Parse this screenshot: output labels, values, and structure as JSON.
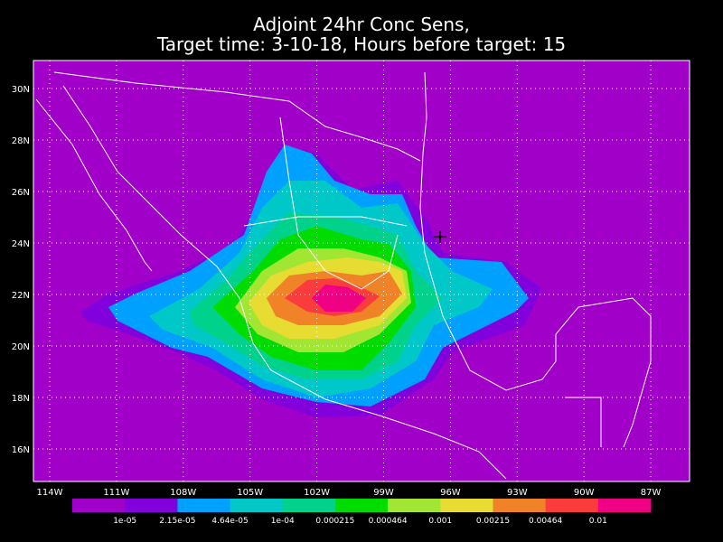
{
  "title": {
    "line1": "Adjoint 24hr Conc Sens,",
    "line2": "Target time: 3-10-18, Hours before target: 15"
  },
  "map": {
    "lat_labels": [
      "30N",
      "28N",
      "26N",
      "24N",
      "22N",
      "20N",
      "18N",
      "16N"
    ],
    "lon_labels": [
      "114W",
      "111W",
      "108W",
      "105W",
      "102W",
      "99W",
      "96W",
      "93W",
      "90W",
      "87W"
    ]
  },
  "colorbar": {
    "colors": [
      "#a000c8",
      "#8200dc",
      "#00a0ff",
      "#00c8c8",
      "#00d28c",
      "#00dc00",
      "#a0e632",
      "#e6dc32",
      "#f08228",
      "#fa3c3c",
      "#f00082"
    ],
    "labels": [
      "1e-05",
      "2.15e-05",
      "4.64e-05",
      "1e-04",
      "0.000215",
      "0.000464",
      "0.001",
      "0.00215",
      "0.00464",
      "0.01"
    ]
  }
}
